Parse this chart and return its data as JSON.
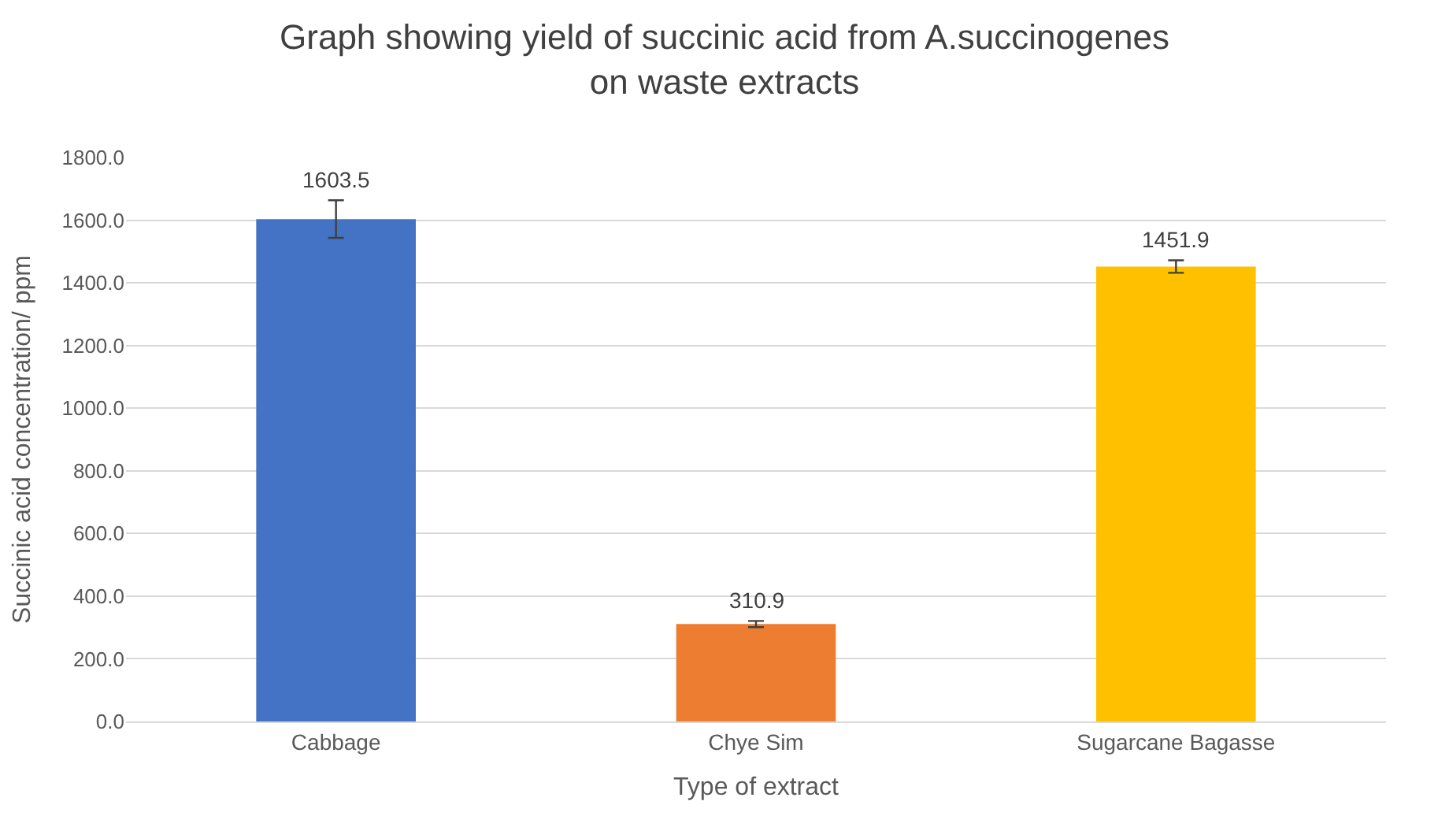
{
  "chart_data": {
    "type": "bar",
    "title": "Graph showing yield of succinic acid from A.succinogenes\non waste extracts",
    "xlabel": "Type of extract",
    "ylabel": "Succinic acid concentration/ ppm",
    "categories": [
      "Cabbage",
      "Chye Sim",
      "Sugarcane Bagasse"
    ],
    "values": [
      1603.5,
      310.9,
      1451.9
    ],
    "colors": [
      "#4472c4",
      "#ed7d31",
      "#ffc000"
    ],
    "errors": [
      60,
      10,
      20
    ],
    "data_labels": true,
    "ylim": [
      0,
      1800
    ],
    "yticks": [
      {
        "value": 0,
        "label": "0.0"
      },
      {
        "value": 200,
        "label": "200.0"
      },
      {
        "value": 400,
        "label": "400.0"
      },
      {
        "value": 600,
        "label": "600.0"
      },
      {
        "value": 800,
        "label": "800.0"
      },
      {
        "value": 1000,
        "label": "1000.0"
      },
      {
        "value": 1200,
        "label": "1200.0"
      },
      {
        "value": 1400,
        "label": "1400.0"
      },
      {
        "value": 1600,
        "label": "1600.0"
      },
      {
        "value": 1800,
        "label": "1800.0"
      }
    ],
    "grid": "y"
  }
}
